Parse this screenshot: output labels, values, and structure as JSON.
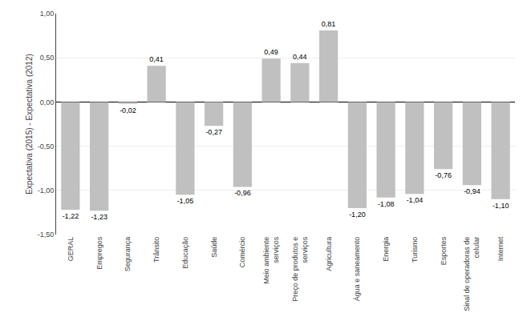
{
  "chart_data": {
    "type": "bar",
    "categories": [
      "GERAL",
      "Empregos",
      "Segurança",
      "Trânsito",
      "Educação",
      "Saúde",
      "Comércio",
      "Meio ambiente\nserviços",
      "Preço de produtos e\nserviços",
      "Agricultura",
      "Água e saneamento",
      "Energia",
      "Turismo",
      "Esportes",
      "Sinal de operadoras de\ncelular",
      "Internet"
    ],
    "values": [
      -1.22,
      -1.23,
      -0.02,
      0.41,
      -1.05,
      -0.27,
      -0.96,
      0.49,
      0.44,
      0.81,
      -1.2,
      -1.08,
      -1.04,
      -0.76,
      -0.94,
      -1.1
    ],
    "value_labels": [
      "-1,22",
      "-1,23",
      "-0,02",
      "0,41",
      "-1,05",
      "-0,27",
      "-0,96",
      "0,49",
      "0,44",
      "0,81",
      "-1,20",
      "-1,08",
      "-1,04",
      "-0,76",
      "-0,94",
      "-1,10"
    ],
    "data_labels": true,
    "color": "#c0c0c0",
    "ylabel": "Expectativa (2015) - Expectativa (2012)",
    "ylim": [
      -1.5,
      1.0
    ],
    "yticks": [
      {
        "value": -1.5,
        "label": "-1,50"
      },
      {
        "value": -1.0,
        "label": "-1,00"
      },
      {
        "value": -0.5,
        "label": "-0,50"
      },
      {
        "value": 0.0,
        "label": "0,00"
      },
      {
        "value": 0.5,
        "label": "0,50"
      },
      {
        "value": 1.0,
        "label": "1,00"
      }
    ],
    "grid": true
  }
}
